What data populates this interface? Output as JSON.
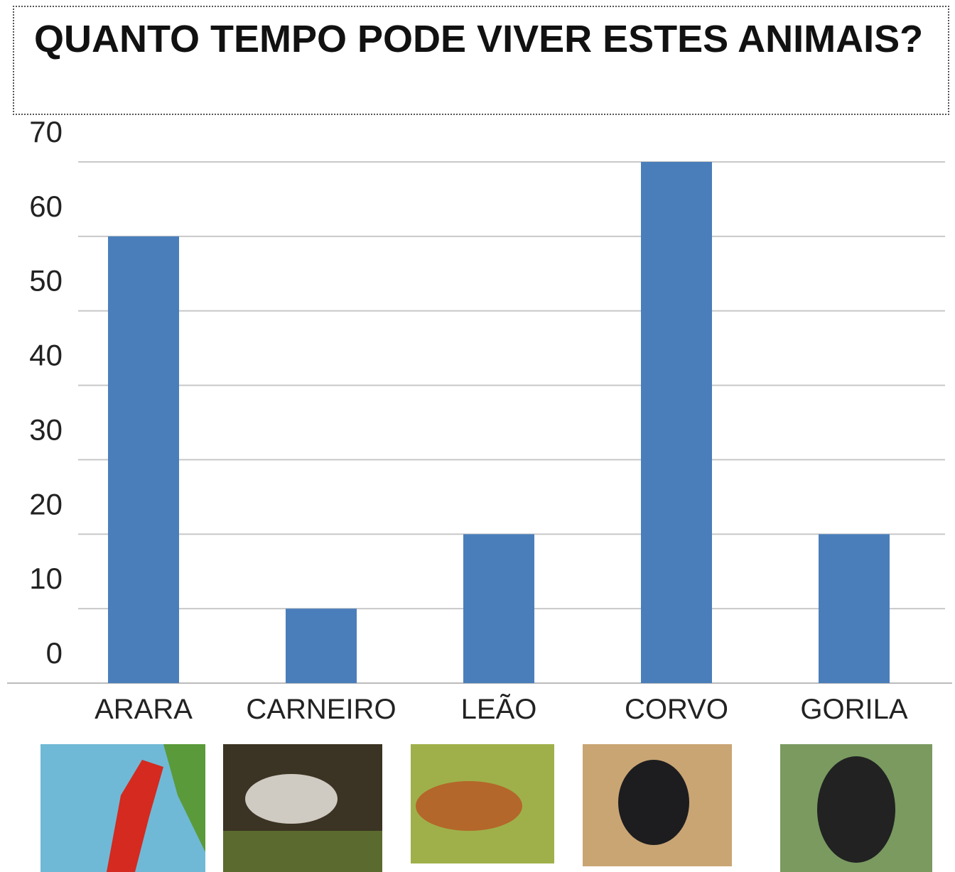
{
  "chart_data": {
    "type": "bar",
    "title": "QUANTO TEMPO PODE VIVER ESTES ANIMAIS?",
    "categories": [
      "ARARA",
      "CARNEIRO",
      "LEÃO",
      "CORVO",
      "GORILA"
    ],
    "values": [
      60,
      10,
      20,
      70,
      20
    ],
    "color": "#4a7ebb",
    "ylim": [
      0,
      70
    ],
    "yticks": [
      0,
      10,
      20,
      30,
      40,
      50,
      60,
      70
    ],
    "grid": true
  }
}
